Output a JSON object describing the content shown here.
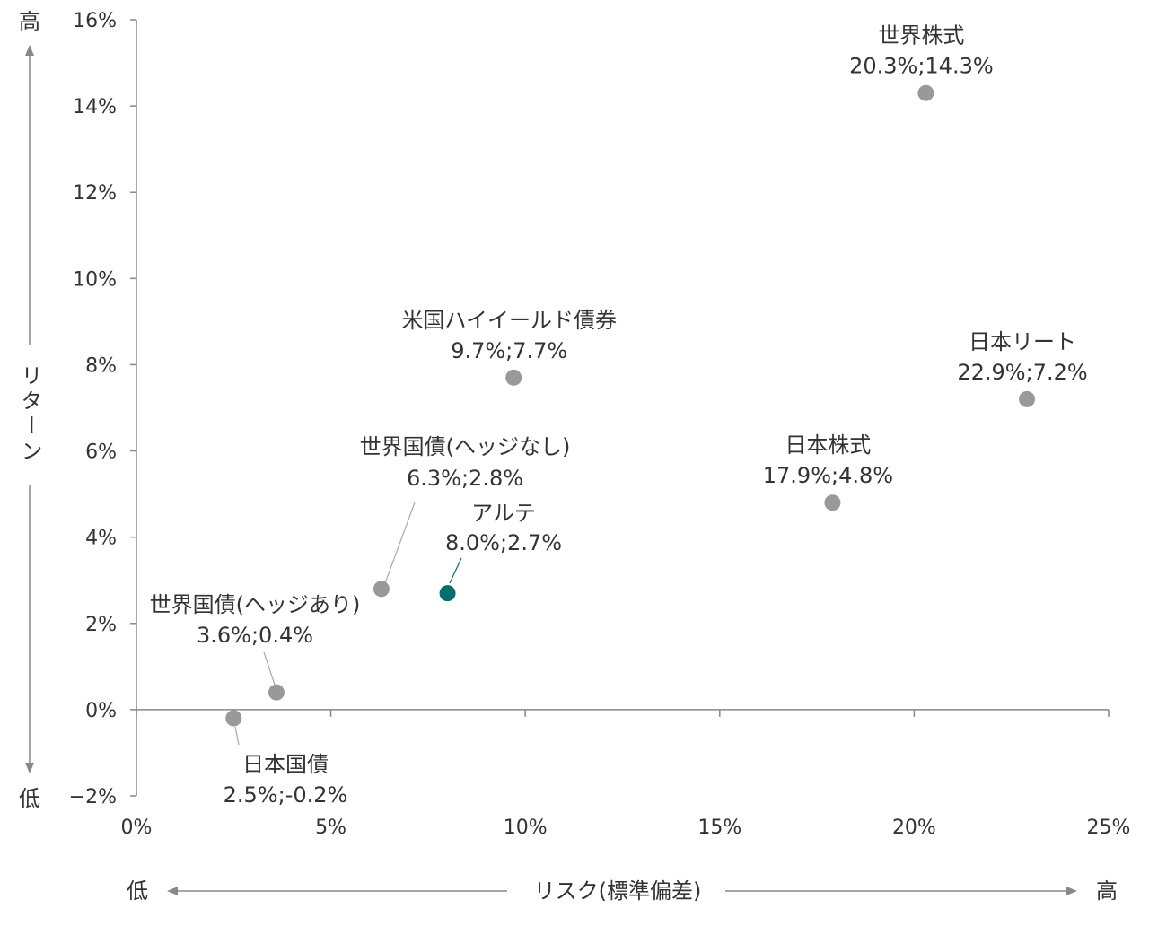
{
  "chart_data": {
    "type": "scatter",
    "title": "",
    "xlabel": "リスク(標準偏差)",
    "ylabel": "リターン",
    "x_low_label": "低",
    "x_high_label": "高",
    "y_low_label": "低",
    "y_high_label": "高",
    "xlim": [
      0,
      25
    ],
    "ylim": [
      -2,
      16
    ],
    "x_ticks": [
      0,
      5,
      10,
      15,
      20,
      25
    ],
    "x_tick_labels": [
      "0%",
      "5%",
      "10%",
      "15%",
      "20%",
      "25%"
    ],
    "y_ticks": [
      -2,
      0,
      2,
      4,
      6,
      8,
      10,
      12,
      14,
      16
    ],
    "y_tick_labels": [
      "−2%",
      "0%",
      "2%",
      "4%",
      "6%",
      "8%",
      "10%",
      "12%",
      "14%",
      "16%"
    ],
    "grid": false,
    "colors": {
      "default": "#999999",
      "highlight": "#006e6e",
      "axis": "#888888",
      "text": "#333333"
    },
    "points": [
      {
        "name": "世界株式",
        "value_label": "20.3%;14.3%",
        "x": 20.3,
        "y": 14.3,
        "highlight": false
      },
      {
        "name": "米国ハイイールド債券",
        "value_label": "9.7%;7.7%",
        "x": 9.7,
        "y": 7.7,
        "highlight": false
      },
      {
        "name": "日本リート",
        "value_label": "22.9%;7.2%",
        "x": 22.9,
        "y": 7.2,
        "highlight": false
      },
      {
        "name": "日本株式",
        "value_label": "17.9%;4.8%",
        "x": 17.9,
        "y": 4.8,
        "highlight": false
      },
      {
        "name": "世界国債(ヘッジなし)",
        "value_label": "6.3%;2.8%",
        "x": 6.3,
        "y": 2.8,
        "highlight": false
      },
      {
        "name": "アルテ",
        "value_label": "8.0%;2.7%",
        "x": 8.0,
        "y": 2.7,
        "highlight": true
      },
      {
        "name": "世界国債(ヘッジあり)",
        "value_label": "3.6%;0.4%",
        "x": 3.6,
        "y": 0.4,
        "highlight": false
      },
      {
        "name": "日本国債",
        "value_label": "2.5%;-0.2%",
        "x": 2.5,
        "y": -0.2,
        "highlight": false
      }
    ]
  }
}
